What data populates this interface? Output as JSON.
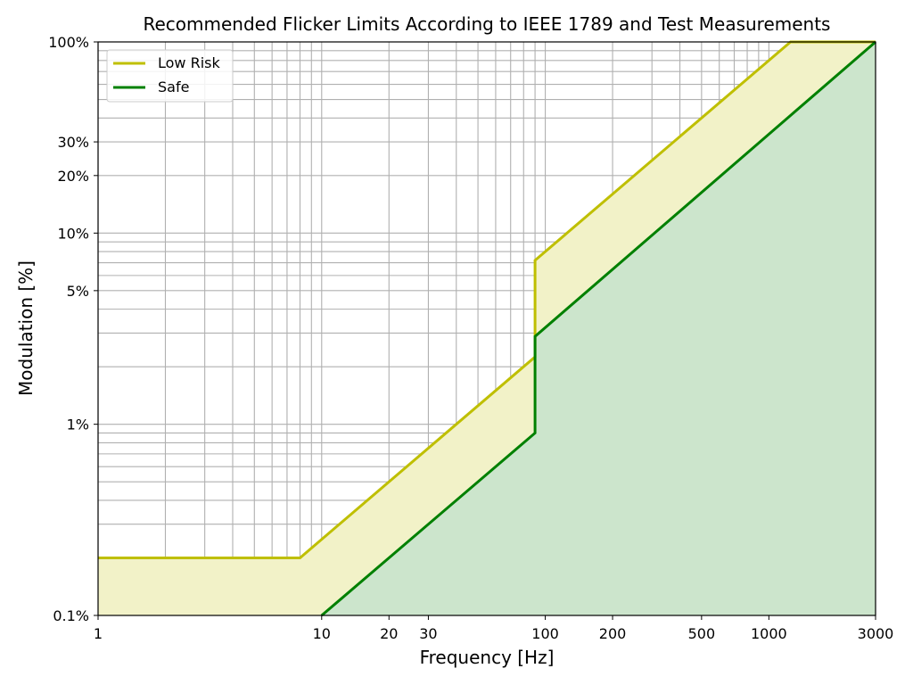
{
  "chart_data": {
    "type": "line",
    "title": "Recommended Flicker Limits According to IEEE 1789 and Test Measurements",
    "xlabel": "Frequency [Hz]",
    "ylabel": "Modulation [%]",
    "x_scale": "log",
    "y_scale": "log",
    "xlim": [
      1,
      3000
    ],
    "ylim": [
      0.1,
      100
    ],
    "grid": true,
    "legend_position": "top-left",
    "x_ticks": [
      {
        "value": 1,
        "label": "1"
      },
      {
        "value": 10,
        "label": "10"
      },
      {
        "value": 20,
        "label": "20"
      },
      {
        "value": 30,
        "label": "30"
      },
      {
        "value": 100,
        "label": "100"
      },
      {
        "value": 200,
        "label": "200"
      },
      {
        "value": 500,
        "label": "500"
      },
      {
        "value": 1000,
        "label": "1000"
      },
      {
        "value": 3000,
        "label": "3000"
      }
    ],
    "y_ticks": [
      {
        "value": 0.1,
        "label": "0.1%"
      },
      {
        "value": 1,
        "label": "1%"
      },
      {
        "value": 5,
        "label": "5%"
      },
      {
        "value": 10,
        "label": "10%"
      },
      {
        "value": 20,
        "label": "20%"
      },
      {
        "value": 30,
        "label": "30%"
      },
      {
        "value": 100,
        "label": "100%"
      }
    ],
    "series": [
      {
        "name": "Low Risk",
        "color": "#bfbf00",
        "fill_color": "#f2f2c8",
        "points": [
          [
            1,
            0.2
          ],
          [
            8,
            0.2
          ],
          [
            90,
            2.25
          ],
          [
            90,
            7.2
          ],
          [
            1250,
            100
          ],
          [
            3000,
            100
          ]
        ]
      },
      {
        "name": "Safe",
        "color": "#008000",
        "fill_color": "#cce5cc",
        "points": [
          [
            10,
            0.1
          ],
          [
            90,
            0.9
          ],
          [
            90,
            2.88
          ],
          [
            3000,
            100
          ]
        ]
      }
    ]
  }
}
